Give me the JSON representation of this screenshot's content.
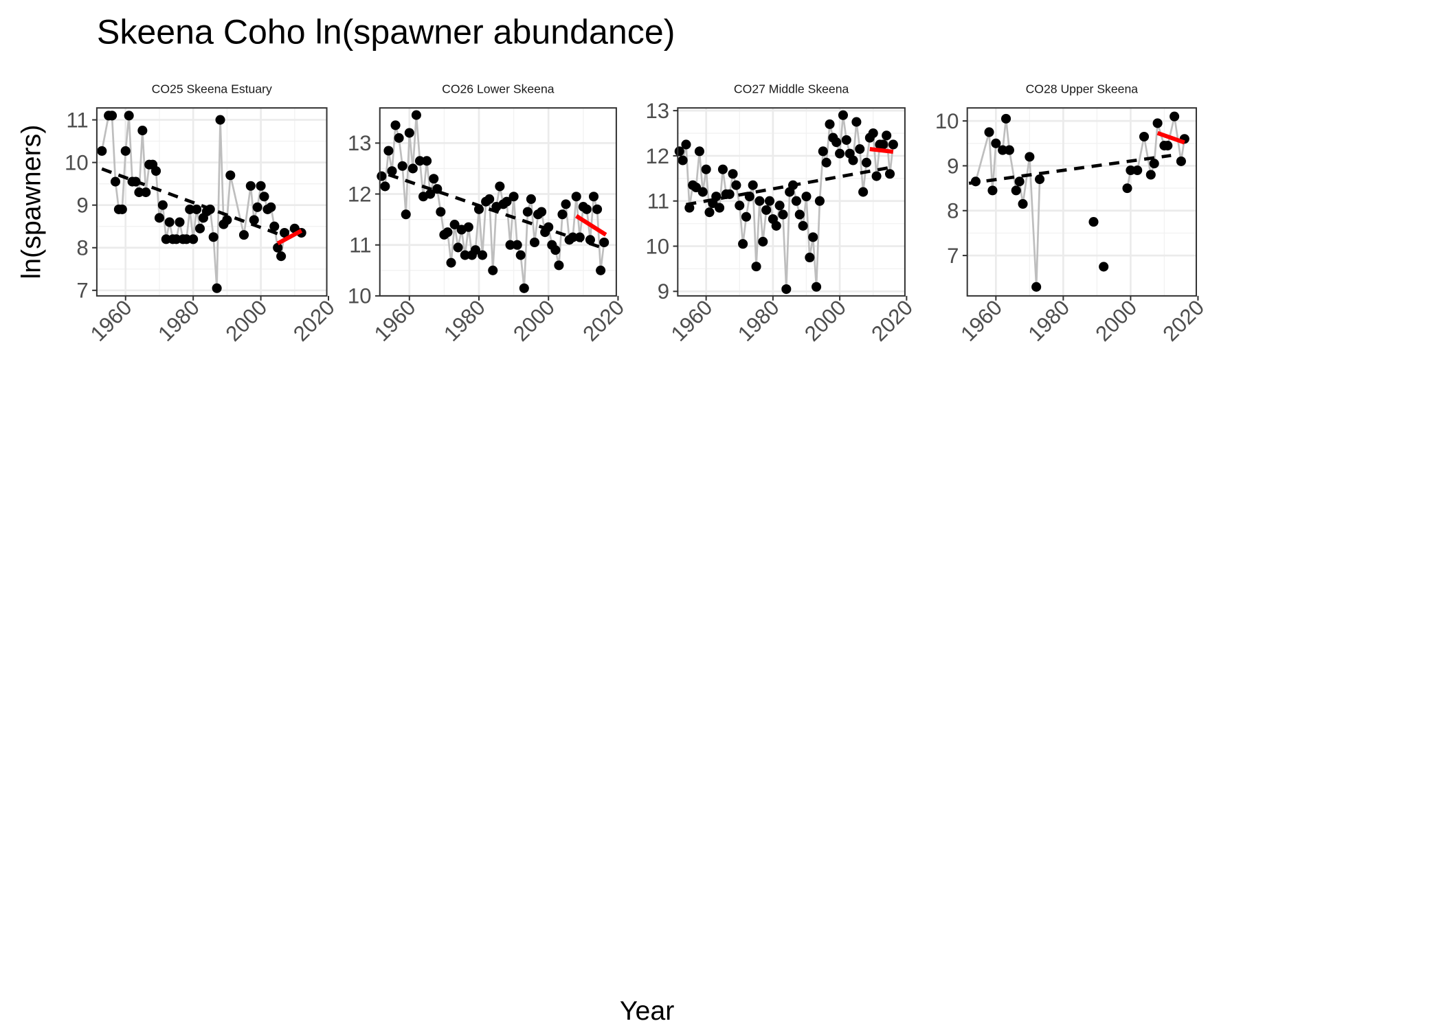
{
  "title": "Skeena Coho ln(spawner abundance)",
  "y_label": "ln(spawners)",
  "x_label": "Year",
  "chart_data": [
    {
      "type": "line",
      "title": "CO25 Skeena Estuary",
      "color": "#000000",
      "line_color": "#bebebe",
      "x": [
        1953,
        1955,
        1956,
        1957,
        1958,
        1959,
        1960,
        1961,
        1962,
        1963,
        1964,
        1965,
        1966,
        1967,
        1968,
        1969,
        1970,
        1971,
        1972,
        1973,
        1974,
        1975,
        1976,
        1977,
        1978,
        1979,
        1980,
        1981,
        1982,
        1983,
        1984,
        1985,
        1986,
        1987,
        1988,
        1989,
        1990,
        1991,
        1995,
        1997,
        1998,
        1999,
        2000,
        2001,
        2002,
        2003,
        2004,
        2005,
        2006,
        2007,
        2010,
        2012
      ],
      "values": [
        10.27,
        11.1,
        11.1,
        9.55,
        8.9,
        8.9,
        10.27,
        11.1,
        9.55,
        9.55,
        9.3,
        10.75,
        9.3,
        9.95,
        9.95,
        9.8,
        8.7,
        9.0,
        8.2,
        8.6,
        8.2,
        8.2,
        8.6,
        8.2,
        8.2,
        8.9,
        8.2,
        8.9,
        8.45,
        8.7,
        8.85,
        8.9,
        8.25,
        7.05,
        11.0,
        8.55,
        8.65,
        9.7,
        8.3,
        9.45,
        8.65,
        8.95,
        9.45,
        9.2,
        8.9,
        8.95,
        8.5,
        8.0,
        7.8,
        8.35,
        8.45,
        8.35
      ],
      "trend": {
        "x": [
          1953,
          2007
        ],
        "y": [
          9.85,
          8.27
        ],
        "color": "#000000"
      },
      "recent_trend": {
        "x": [
          2005,
          2012
        ],
        "y": [
          8.1,
          8.4
        ],
        "color": "#ff0000"
      },
      "xlim": [
        1951.5,
        2019.5
      ],
      "xticks": [
        1960,
        1980,
        2000,
        2020
      ],
      "ylim": [
        6.87,
        11.28
      ],
      "yticks": [
        7,
        8,
        9,
        10,
        11
      ],
      "grid": true
    },
    {
      "type": "line",
      "title": "CO26 Lower Skeena",
      "color": "#000000",
      "line_color": "#bebebe",
      "x": [
        1952,
        1953,
        1954,
        1955,
        1956,
        1957,
        1958,
        1959,
        1960,
        1961,
        1962,
        1963,
        1964,
        1965,
        1966,
        1967,
        1968,
        1969,
        1970,
        1971,
        1972,
        1973,
        1974,
        1975,
        1976,
        1977,
        1978,
        1979,
        1980,
        1981,
        1982,
        1983,
        1984,
        1985,
        1986,
        1987,
        1988,
        1989,
        1990,
        1991,
        1992,
        1993,
        1994,
        1995,
        1996,
        1997,
        1998,
        1999,
        2000,
        2001,
        2002,
        2003,
        2004,
        2005,
        2006,
        2007,
        2008,
        2009,
        2010,
        2011,
        2012,
        2013,
        2014,
        2015,
        2016
      ],
      "values": [
        12.35,
        12.15,
        12.85,
        12.45,
        13.35,
        13.1,
        12.55,
        11.6,
        13.2,
        12.5,
        13.55,
        12.65,
        11.95,
        12.65,
        12.0,
        12.3,
        12.1,
        11.65,
        11.2,
        11.25,
        10.65,
        11.4,
        10.95,
        11.3,
        10.8,
        11.35,
        10.8,
        10.9,
        11.7,
        10.8,
        11.85,
        11.9,
        10.5,
        11.75,
        12.15,
        11.8,
        11.85,
        11.0,
        11.95,
        11.0,
        10.8,
        10.15,
        11.65,
        11.9,
        11.05,
        11.6,
        11.65,
        11.25,
        11.35,
        11.0,
        10.9,
        10.6,
        11.6,
        11.8,
        11.1,
        11.15,
        11.95,
        11.15,
        11.75,
        11.7,
        11.1,
        11.95,
        11.7,
        10.5,
        11.05
      ],
      "trend": {
        "x": [
          1954,
          2016.5
        ],
        "y": [
          12.38,
          10.92
        ],
        "color": "#000000"
      },
      "recent_trend": {
        "x": [
          2008,
          2016.5
        ],
        "y": [
          11.57,
          11.2
        ],
        "color": "#ff0000"
      },
      "xlim": [
        1951.5,
        2019.5
      ],
      "xticks": [
        1960,
        1980,
        2000,
        2020
      ],
      "ylim": [
        10,
        13.69
      ],
      "yticks": [
        10,
        11,
        12,
        13
      ],
      "grid": true
    },
    {
      "type": "line",
      "title": "CO27 Middle Skeena",
      "color": "#000000",
      "line_color": "#bebebe",
      "x": [
        1952,
        1953,
        1954,
        1955,
        1956,
        1957,
        1958,
        1959,
        1960,
        1961,
        1962,
        1963,
        1964,
        1965,
        1966,
        1967,
        1968,
        1969,
        1970,
        1971,
        1972,
        1973,
        1974,
        1975,
        1976,
        1977,
        1978,
        1979,
        1980,
        1981,
        1982,
        1983,
        1984,
        1985,
        1986,
        1987,
        1988,
        1989,
        1990,
        1991,
        1992,
        1993,
        1994,
        1995,
        1996,
        1997,
        1998,
        1999,
        2000,
        2001,
        2002,
        2003,
        2004,
        2005,
        2006,
        2007,
        2008,
        2009,
        2010,
        2011,
        2012,
        2013,
        2014,
        2015,
        2016
      ],
      "values": [
        12.1,
        11.9,
        12.25,
        10.85,
        11.35,
        11.3,
        12.1,
        11.2,
        11.7,
        10.75,
        10.95,
        11.1,
        10.85,
        11.7,
        11.15,
        11.15,
        11.6,
        11.35,
        10.9,
        10.05,
        10.65,
        11.1,
        11.35,
        9.55,
        11.0,
        10.1,
        10.8,
        11.0,
        10.6,
        10.45,
        10.9,
        10.7,
        9.05,
        11.2,
        11.35,
        11.0,
        10.7,
        10.45,
        11.1,
        9.75,
        10.2,
        9.1,
        11.0,
        12.1,
        11.85,
        12.7,
        12.4,
        12.3,
        12.05,
        12.9,
        12.35,
        12.05,
        11.9,
        12.75,
        12.15,
        11.2,
        11.85,
        12.4,
        12.5,
        11.55,
        12.25,
        12.25,
        12.45,
        11.6,
        12.25
      ],
      "trend": {
        "x": [
          1954,
          2015
        ],
        "y": [
          10.92,
          11.74
        ],
        "color": "#000000"
      },
      "recent_trend": {
        "x": [
          2009,
          2016
        ],
        "y": [
          12.15,
          12.09
        ],
        "color": "#ff0000"
      },
      "xlim": [
        1951.5,
        2019.5
      ],
      "xticks": [
        1960,
        1980,
        2000,
        2020
      ],
      "ylim": [
        8.9,
        13.06
      ],
      "yticks": [
        9,
        10,
        11,
        12,
        13
      ],
      "grid": true
    },
    {
      "type": "line",
      "title": "CO28 Upper Skeena",
      "color": "#000000",
      "line_color": "#bebebe",
      "x": [
        1954,
        1958,
        1959,
        1960,
        1962,
        1963,
        1964,
        1966,
        1967,
        1968,
        1970,
        1972,
        1973,
        1980,
        1989,
        1990,
        1992,
        1995,
        1999,
        2000,
        2002,
        2004,
        2006,
        2007,
        2008,
        2010,
        2011,
        2013,
        2015,
        2016
      ],
      "values": [
        8.65,
        9.75,
        8.45,
        9.5,
        9.35,
        10.05,
        9.35,
        8.45,
        8.65,
        8.15,
        9.2,
        6.3,
        8.7,
        null,
        7.75,
        null,
        6.75,
        null,
        8.5,
        8.9,
        8.9,
        9.65,
        8.8,
        9.05,
        9.95,
        9.45,
        9.45,
        10.1,
        9.1,
        9.6
      ],
      "trend": {
        "x": [
          1952,
          2012
        ],
        "y": [
          8.61,
          9.23
        ],
        "color": "#000000"
      },
      "recent_trend": {
        "x": [
          2008,
          2016
        ],
        "y": [
          9.73,
          9.52
        ],
        "color": "#ff0000"
      },
      "xlim": [
        1951.5,
        2019.5
      ],
      "xticks": [
        1960,
        1980,
        2000,
        2020
      ],
      "ylim": [
        6.1,
        10.29
      ],
      "yticks": [
        7,
        8,
        9,
        10
      ],
      "grid": true
    }
  ]
}
